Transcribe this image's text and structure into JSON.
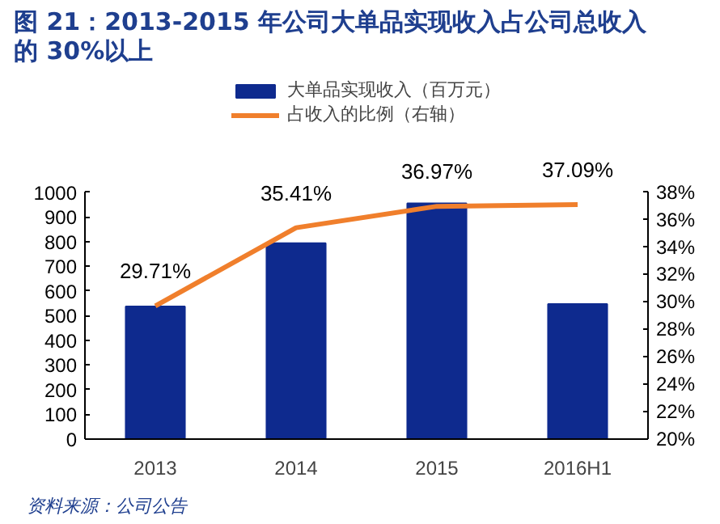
{
  "chart_data": {
    "type": "bar",
    "title": "图 21：2013-2015 年公司大单品实现收入占公司总收入的 30%以上",
    "categories": [
      "2013",
      "2014",
      "2015",
      "2016H1"
    ],
    "series": [
      {
        "name": "大单品实现收入（百万元）",
        "color": "#0e2a8e",
        "values": [
          537,
          793,
          955,
          547
        ]
      },
      {
        "name": "占收入的比例（右轴）",
        "type": "line",
        "axis": "y2",
        "color": "#f07f2c",
        "values": [
          29.71,
          35.41,
          36.97,
          37.09
        ],
        "value_labels": [
          "29.71%",
          "35.41%",
          "36.97%",
          "37.09%"
        ]
      }
    ],
    "ylim": [
      0,
      1000
    ],
    "yticks": [
      0,
      100,
      200,
      300,
      400,
      500,
      600,
      700,
      800,
      900,
      1000
    ],
    "y2lim": [
      20,
      38
    ],
    "y2ticks": [
      {
        "value": 20,
        "label": "20%"
      },
      {
        "value": 22,
        "label": "22%"
      },
      {
        "value": 24,
        "label": "24%"
      },
      {
        "value": 26,
        "label": "26%"
      },
      {
        "value": 28,
        "label": "28%"
      },
      {
        "value": 30,
        "label": "30%"
      },
      {
        "value": 32,
        "label": "32%"
      },
      {
        "value": 34,
        "label": "34%"
      },
      {
        "value": 36,
        "label": "36%"
      },
      {
        "value": 38,
        "label": "38%"
      }
    ],
    "legend": "top",
    "grid": false,
    "marker": "none",
    "annotations": [
      "资料来源：公司公告"
    ]
  }
}
